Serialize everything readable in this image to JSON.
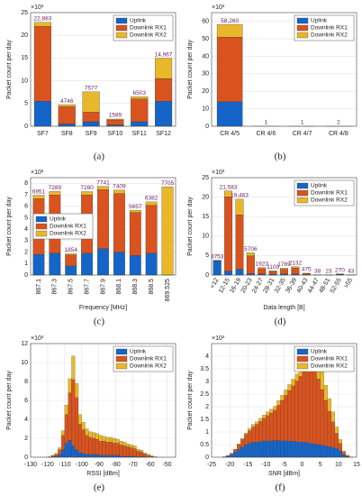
{
  "chart_data": [
    {
      "type": "bar",
      "caption": "(a)",
      "y_label": "Packet count per day",
      "y_multiplier": "×10³",
      "categories": [
        "SF7",
        "SF8",
        "SF9",
        "SF10",
        "SF11",
        "SF12"
      ],
      "series": [
        {
          "name": "Uplink",
          "color": "#1565c8",
          "values": [
            5.5,
            0.5,
            1.0,
            0.3,
            1.0,
            5.5
          ]
        },
        {
          "name": "Downlink RX1",
          "color": "#d9531e",
          "values": [
            16.5,
            3.8,
            2.1,
            1.1,
            5.0,
            5.0
          ]
        },
        {
          "name": "Downlink RX2",
          "color": "#e8b82a",
          "values": [
            0.883,
            0.446,
            4.477,
            0.189,
            0.503,
            4.467
          ]
        }
      ],
      "total_labels": [
        "22,883",
        "4746",
        "7577",
        "1589",
        "6503",
        "14,967"
      ],
      "ylim": [
        0,
        25
      ],
      "yticks": [
        0,
        5,
        10,
        15,
        20,
        25
      ],
      "grid": true,
      "legend": "upper right"
    },
    {
      "type": "bar",
      "caption": "(b)",
      "y_label": "Packet count per day",
      "y_multiplier": "×10³",
      "categories": [
        "CR 4/5",
        "CR 4/6",
        "CR 4/7",
        "CR 4/8"
      ],
      "series": [
        {
          "name": "Uplink",
          "color": "#1565c8",
          "values": [
            14.0,
            0.001,
            0.001,
            0.002
          ]
        },
        {
          "name": "Downlink RX1",
          "color": "#d9531e",
          "values": [
            37.0,
            0,
            0,
            0
          ]
        },
        {
          "name": "Downlink RX2",
          "color": "#e8b82a",
          "values": [
            7.26,
            0,
            0,
            0
          ]
        }
      ],
      "total_labels": [
        "58,260",
        "1",
        "1",
        "2"
      ],
      "ylim": [
        0,
        65
      ],
      "yticks": [
        0,
        10,
        20,
        30,
        40,
        50,
        60
      ],
      "grid": true,
      "legend": "upper right"
    },
    {
      "type": "bar",
      "caption": "(c)",
      "y_label": "Packet count per day",
      "x_label": "Frequency [MHz]",
      "y_multiplier": "×10³",
      "categories": [
        "867.1",
        "867.3",
        "867.5",
        "867.7",
        "867.9",
        "868.1",
        "868.3",
        "868.5",
        "869.525"
      ],
      "series": [
        {
          "name": "Uplink",
          "color": "#1565c8",
          "values": [
            1.8,
            1.9,
            0.8,
            1.9,
            2.3,
            2.0,
            1.7,
            1.9,
            0
          ]
        },
        {
          "name": "Downlink RX1",
          "color": "#d9531e",
          "values": [
            4.851,
            5.089,
            0.954,
            5.08,
            5.141,
            5.109,
            3.757,
            4.182,
            0
          ]
        },
        {
          "name": "Downlink RX2",
          "color": "#e8b82a",
          "values": [
            0.3,
            0.3,
            0.1,
            0.3,
            0.3,
            0.3,
            0.2,
            0.3,
            7.705
          ]
        }
      ],
      "total_labels": [
        "6951",
        "7289",
        "1854",
        "7280",
        "7741",
        "7409",
        "5657",
        "6382",
        "7705"
      ],
      "ylim": [
        0,
        8.5
      ],
      "yticks": [
        0,
        1,
        2,
        3,
        4,
        5,
        6,
        7,
        8
      ],
      "grid": true,
      "legend": "center left"
    },
    {
      "type": "bar",
      "caption": "(d)",
      "y_label": "Packet count per day",
      "x_label": "Data length [B]",
      "y_multiplier": "×10³",
      "categories": [
        "<12",
        "12-15",
        "16-19",
        "20-23",
        "24-27",
        "28-31",
        "32-35",
        "36-39",
        "40-43",
        "44-47",
        "48-51",
        "52-55",
        ">55"
      ],
      "series": [
        {
          "name": "Uplink",
          "color": "#1565c8",
          "values": [
            3.6,
            1.0,
            1.5,
            0.4,
            0.3,
            0.2,
            0.3,
            0.3,
            0.1,
            0.01,
            0.01,
            0.05,
            0.01
          ]
        },
        {
          "name": "Downlink RX1",
          "color": "#d9531e",
          "values": [
            0.1,
            19.083,
            13.963,
            4.506,
            1.323,
            0.709,
            1.169,
            1.532,
            0.275,
            0.02,
            0.01,
            0.17,
            0.02
          ]
        },
        {
          "name": "Downlink RX2",
          "color": "#e8b82a",
          "values": [
            0.053,
            1.5,
            4.0,
            0.8,
            0.3,
            0.2,
            0.3,
            0.3,
            0.1,
            0.008,
            0.003,
            0.05,
            0.013
          ]
        }
      ],
      "total_labels": [
        "3753",
        "21,583",
        "19,463",
        "5706",
        "1923",
        "1109",
        "1769",
        "2132",
        "475",
        "38",
        "23",
        "270",
        "43"
      ],
      "ylim": [
        0,
        25
      ],
      "yticks": [
        0,
        5,
        10,
        15,
        20,
        25
      ],
      "grid": true,
      "legend": "upper right"
    },
    {
      "type": "histogram",
      "caption": "(e)",
      "y_label": "Packet count per day",
      "x_label": "RSSI [dBm]",
      "y_multiplier": "×10³",
      "bins": [
        -120,
        -118,
        -116,
        -114,
        -112,
        -110,
        -108,
        -106,
        -104,
        -102,
        -100,
        -98,
        -96,
        -94,
        -92,
        -90,
        -88,
        -86,
        -84,
        -82,
        -80,
        -78,
        -76,
        -74,
        -72,
        -70,
        -68,
        -66,
        -64,
        -62,
        -60,
        -58,
        -56
      ],
      "series": [
        {
          "name": "Uplink",
          "color": "#1565c8",
          "values": [
            0,
            0.05,
            0.1,
            0.3,
            0.8,
            1.5,
            1.8,
            1.2,
            0.8,
            0.5,
            0.4,
            0.3,
            0.3,
            0.3,
            0.3,
            0.2,
            0.2,
            0.2,
            0.2,
            0.2,
            0.2,
            0.1,
            0.1,
            0.1,
            0.1,
            0.1,
            0.05,
            0.05,
            0.05,
            0,
            0,
            0
          ]
        },
        {
          "name": "Downlink RX1",
          "color": "#d9531e",
          "values": [
            0.05,
            0.1,
            0.2,
            0.5,
            1.5,
            3,
            5,
            7,
            5.5,
            3,
            2.5,
            2,
            1.8,
            1.7,
            1.6,
            1.5,
            1.5,
            1.4,
            1.4,
            1.3,
            1.3,
            1.2,
            1.1,
            1,
            0.9,
            0.8,
            0.6,
            0.5,
            0.3,
            0.2,
            0.1,
            0.05
          ]
        },
        {
          "name": "Downlink RX2",
          "color": "#e8b82a",
          "values": [
            0,
            0.05,
            0.1,
            0.2,
            0.5,
            1,
            1.5,
            2.5,
            1.5,
            1,
            0.8,
            0.7,
            0.6,
            0.6,
            0.6,
            0.6,
            0.5,
            0.5,
            0.5,
            0.5,
            0.4,
            0.4,
            0.4,
            0.3,
            0.3,
            0.3,
            0.2,
            0.2,
            0.1,
            0.1,
            0.05,
            0
          ]
        }
      ],
      "xlim": [
        -130,
        -45
      ],
      "xticks": [
        -130,
        -120,
        -110,
        -100,
        -90,
        -80,
        -70,
        -60,
        -50
      ],
      "ylim": [
        0,
        12
      ],
      "yticks": [
        0,
        2,
        4,
        6,
        8,
        10,
        12
      ],
      "grid": true,
      "legend": "upper right"
    },
    {
      "type": "histogram",
      "caption": "(f)",
      "y_label": "Packet count per day",
      "x_label": "SNR [dBm]",
      "y_multiplier": "×10³",
      "bins": [
        -22,
        -21,
        -20,
        -19,
        -18,
        -17,
        -16,
        -15,
        -14,
        -13,
        -12,
        -11,
        -10,
        -9,
        -8,
        -7,
        -6,
        -5,
        -4,
        -3,
        -2,
        -1,
        0,
        1,
        2,
        3,
        4,
        5,
        6,
        7,
        8,
        9,
        10,
        11,
        12,
        13,
        14
      ],
      "series": [
        {
          "name": "Uplink",
          "color": "#1565c8",
          "values": [
            0.02,
            0.05,
            0.1,
            0.2,
            0.3,
            0.4,
            0.5,
            0.55,
            0.6,
            0.6,
            0.62,
            0.65,
            0.65,
            0.65,
            0.66,
            0.66,
            0.65,
            0.65,
            0.64,
            0.63,
            0.62,
            0.6,
            0.6,
            0.58,
            0.55,
            0.52,
            0.5,
            0.48,
            0.45,
            0.42,
            0.4,
            0.35,
            0.25,
            0.1,
            0.03,
            0.01
          ]
        },
        {
          "name": "Downlink RX1",
          "color": "#d9531e",
          "values": [
            0,
            0.02,
            0.05,
            0.1,
            0.2,
            0.3,
            0.4,
            0.5,
            0.6,
            0.7,
            0.8,
            0.9,
            1.0,
            1.1,
            1.2,
            1.4,
            1.6,
            1.8,
            2.0,
            2.2,
            2.4,
            2.6,
            2.8,
            3.0,
            3.1,
            3.0,
            2.6,
            2.2,
            1.8,
            1.4,
            1.0,
            0.6,
            0.3,
            0.1,
            0.03,
            0
          ]
        },
        {
          "name": "Downlink RX2",
          "color": "#e8b82a",
          "values": [
            0,
            0,
            0.01,
            0.02,
            0.03,
            0.05,
            0.06,
            0.08,
            0.1,
            0.1,
            0.12,
            0.12,
            0.14,
            0.15,
            0.16,
            0.18,
            0.2,
            0.22,
            0.24,
            0.26,
            0.28,
            0.3,
            0.35,
            0.4,
            0.5,
            0.6,
            0.8,
            0.8,
            0.6,
            0.5,
            0.4,
            0.25,
            0.15,
            0.05,
            0.02,
            0
          ]
        }
      ],
      "xlim": [
        -25,
        15
      ],
      "xticks": [
        -25,
        -20,
        -15,
        -10,
        -5,
        0,
        5,
        10,
        15
      ],
      "ylim": [
        0,
        4.5
      ],
      "yticks": [
        0,
        0.5,
        1,
        1.5,
        2,
        2.5,
        3,
        3.5,
        4
      ],
      "grid": true,
      "legend": "upper right"
    }
  ]
}
